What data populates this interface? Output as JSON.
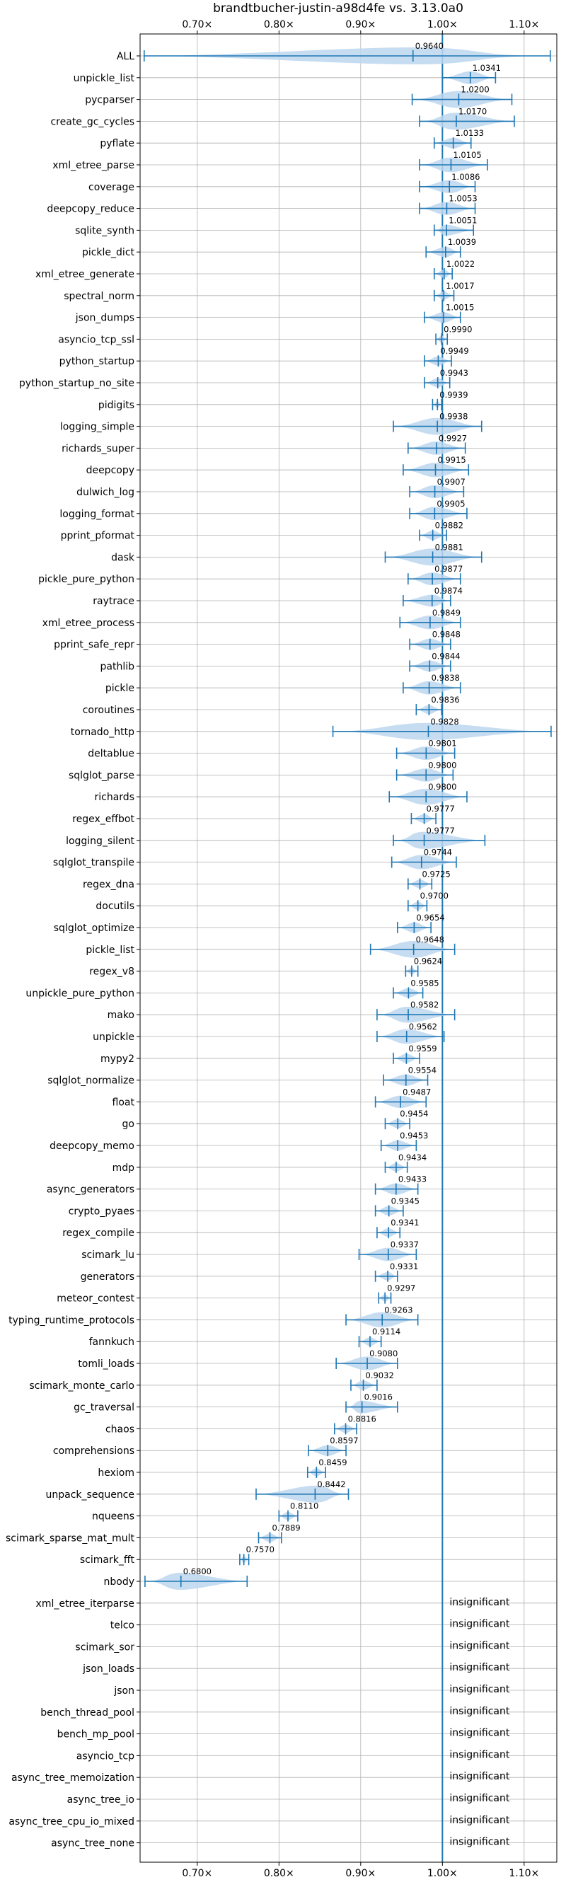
{
  "chart_data": {
    "type": "violin",
    "title": "brandtbucher-justin-a98d4fe vs. 3.13.0a0",
    "xlabel": "",
    "ylabel": "",
    "xlim": [
      0.63,
      1.14
    ],
    "x_ticks": [
      0.7,
      0.8,
      0.9,
      1.0,
      1.1
    ],
    "x_tick_labels": [
      "0.70×",
      "0.80×",
      "0.90×",
      "1.00×",
      "1.10×"
    ],
    "reference_line": 1.0,
    "grid": true,
    "color": "#1f77b4",
    "fill_color": "#bcd6ee",
    "insignificant_label": "insignificant",
    "benchmarks": [
      {
        "name": "ALL",
        "value": 0.964,
        "min": 0.635,
        "max": 1.132,
        "width": 0.045,
        "label": "0.9640"
      },
      {
        "name": "unpickle_list",
        "value": 1.0341,
        "min": 1.0,
        "max": 1.065,
        "width": 0.045,
        "label": "1.0341"
      },
      {
        "name": "pycparser",
        "value": 1.02,
        "min": 0.963,
        "max": 1.085,
        "width": 0.045,
        "label": "1.0200"
      },
      {
        "name": "create_gc_cycles",
        "value": 1.017,
        "min": 0.972,
        "max": 1.088,
        "width": 0.045,
        "label": "1.0170"
      },
      {
        "name": "pyflate",
        "value": 1.0133,
        "min": 0.99,
        "max": 1.035,
        "width": 0.045,
        "label": "1.0133"
      },
      {
        "name": "xml_etree_parse",
        "value": 1.0105,
        "min": 0.972,
        "max": 1.055,
        "width": 0.045,
        "label": "1.0105"
      },
      {
        "name": "coverage",
        "value": 1.0086,
        "min": 0.972,
        "max": 1.04,
        "width": 0.045,
        "label": "1.0086"
      },
      {
        "name": "deepcopy_reduce",
        "value": 1.0053,
        "min": 0.972,
        "max": 1.04,
        "width": 0.045,
        "label": "1.0053"
      },
      {
        "name": "sqlite_synth",
        "value": 1.0051,
        "min": 0.99,
        "max": 1.038,
        "width": 0.045,
        "label": "1.0051"
      },
      {
        "name": "pickle_dict",
        "value": 1.0039,
        "min": 0.98,
        "max": 1.022,
        "width": 0.045,
        "label": "1.0039"
      },
      {
        "name": "xml_etree_generate",
        "value": 1.0022,
        "min": 0.99,
        "max": 1.012,
        "width": 0.045,
        "label": "1.0022"
      },
      {
        "name": "spectral_norm",
        "value": 1.0017,
        "min": 0.99,
        "max": 1.014,
        "width": 0.045,
        "label": "1.0017"
      },
      {
        "name": "json_dumps",
        "value": 1.0015,
        "min": 0.978,
        "max": 1.022,
        "width": 0.045,
        "label": "1.0015"
      },
      {
        "name": "asyncio_tcp_ssl",
        "value": 0.999,
        "min": 0.992,
        "max": 1.006,
        "width": 0.045,
        "label": "0.9990"
      },
      {
        "name": "python_startup",
        "value": 0.9949,
        "min": 0.978,
        "max": 1.011,
        "width": 0.045,
        "label": "0.9949"
      },
      {
        "name": "python_startup_no_site",
        "value": 0.9943,
        "min": 0.978,
        "max": 1.009,
        "width": 0.045,
        "label": "0.9943"
      },
      {
        "name": "pidigits",
        "value": 0.9939,
        "min": 0.988,
        "max": 0.999,
        "width": 0.045,
        "label": "0.9939"
      },
      {
        "name": "logging_simple",
        "value": 0.9938,
        "min": 0.94,
        "max": 1.048,
        "width": 0.045,
        "label": "0.9938"
      },
      {
        "name": "richards_super",
        "value": 0.9927,
        "min": 0.958,
        "max": 1.028,
        "width": 0.045,
        "label": "0.9927"
      },
      {
        "name": "deepcopy",
        "value": 0.9915,
        "min": 0.952,
        "max": 1.032,
        "width": 0.045,
        "label": "0.9915"
      },
      {
        "name": "dulwich_log",
        "value": 0.9907,
        "min": 0.96,
        "max": 1.026,
        "width": 0.045,
        "label": "0.9907"
      },
      {
        "name": "logging_format",
        "value": 0.9905,
        "min": 0.96,
        "max": 1.03,
        "width": 0.045,
        "label": "0.9905"
      },
      {
        "name": "pprint_pformat",
        "value": 0.9882,
        "min": 0.972,
        "max": 1.005,
        "width": 0.045,
        "label": "0.9882"
      },
      {
        "name": "dask",
        "value": 0.9881,
        "min": 0.93,
        "max": 1.048,
        "width": 0.045,
        "label": "0.9881"
      },
      {
        "name": "pickle_pure_python",
        "value": 0.9877,
        "min": 0.958,
        "max": 1.022,
        "width": 0.045,
        "label": "0.9877"
      },
      {
        "name": "raytrace",
        "value": 0.9874,
        "min": 0.952,
        "max": 1.01,
        "width": 0.045,
        "label": "0.9874"
      },
      {
        "name": "xml_etree_process",
        "value": 0.9849,
        "min": 0.948,
        "max": 1.022,
        "width": 0.045,
        "label": "0.9849"
      },
      {
        "name": "pprint_safe_repr",
        "value": 0.9848,
        "min": 0.96,
        "max": 1.01,
        "width": 0.045,
        "label": "0.9848"
      },
      {
        "name": "pathlib",
        "value": 0.9844,
        "min": 0.96,
        "max": 1.01,
        "width": 0.045,
        "label": "0.9844"
      },
      {
        "name": "pickle",
        "value": 0.9838,
        "min": 0.952,
        "max": 1.022,
        "width": 0.045,
        "label": "0.9838"
      },
      {
        "name": "coroutines",
        "value": 0.9836,
        "min": 0.968,
        "max": 0.999,
        "width": 0.045,
        "label": "0.9836"
      },
      {
        "name": "tornado_http",
        "value": 0.9828,
        "min": 0.866,
        "max": 1.133,
        "width": 0.045,
        "label": "0.9828"
      },
      {
        "name": "deltablue",
        "value": 0.9801,
        "min": 0.944,
        "max": 1.015,
        "width": 0.045,
        "label": "0.9801"
      },
      {
        "name": "sqlglot_parse",
        "value": 0.98,
        "min": 0.944,
        "max": 1.013,
        "width": 0.045,
        "label": "0.9800"
      },
      {
        "name": "richards",
        "value": 0.98,
        "min": 0.935,
        "max": 1.03,
        "width": 0.045,
        "label": "0.9800"
      },
      {
        "name": "regex_effbot",
        "value": 0.9777,
        "min": 0.962,
        "max": 0.992,
        "width": 0.045,
        "label": "0.9777"
      },
      {
        "name": "logging_silent",
        "value": 0.9777,
        "min": 0.94,
        "max": 1.052,
        "width": 0.045,
        "label": "0.9777"
      },
      {
        "name": "sqlglot_transpile",
        "value": 0.9744,
        "min": 0.938,
        "max": 1.017,
        "width": 0.045,
        "label": "0.9744"
      },
      {
        "name": "regex_dna",
        "value": 0.9725,
        "min": 0.958,
        "max": 0.987,
        "width": 0.045,
        "label": "0.9725"
      },
      {
        "name": "docutils",
        "value": 0.97,
        "min": 0.958,
        "max": 0.981,
        "width": 0.045,
        "label": "0.9700"
      },
      {
        "name": "sqlglot_optimize",
        "value": 0.9654,
        "min": 0.945,
        "max": 0.986,
        "width": 0.045,
        "label": "0.9654"
      },
      {
        "name": "pickle_list",
        "value": 0.9648,
        "min": 0.912,
        "max": 1.015,
        "width": 0.045,
        "label": "0.9648"
      },
      {
        "name": "regex_v8",
        "value": 0.9624,
        "min": 0.955,
        "max": 0.97,
        "width": 0.045,
        "label": "0.9624"
      },
      {
        "name": "unpickle_pure_python",
        "value": 0.9585,
        "min": 0.94,
        "max": 0.976,
        "width": 0.045,
        "label": "0.9585"
      },
      {
        "name": "mako",
        "value": 0.9582,
        "min": 0.92,
        "max": 1.015,
        "width": 0.045,
        "label": "0.9582"
      },
      {
        "name": "unpickle",
        "value": 0.9562,
        "min": 0.92,
        "max": 1.002,
        "width": 0.045,
        "label": "0.9562"
      },
      {
        "name": "mypy2",
        "value": 0.9559,
        "min": 0.94,
        "max": 0.972,
        "width": 0.045,
        "label": "0.9559"
      },
      {
        "name": "sqlglot_normalize",
        "value": 0.9554,
        "min": 0.928,
        "max": 0.982,
        "width": 0.045,
        "label": "0.9554"
      },
      {
        "name": "float",
        "value": 0.9487,
        "min": 0.918,
        "max": 0.98,
        "width": 0.045,
        "label": "0.9487"
      },
      {
        "name": "go",
        "value": 0.9454,
        "min": 0.93,
        "max": 0.96,
        "width": 0.045,
        "label": "0.9454"
      },
      {
        "name": "deepcopy_memo",
        "value": 0.9453,
        "min": 0.925,
        "max": 0.968,
        "width": 0.045,
        "label": "0.9453"
      },
      {
        "name": "mdp",
        "value": 0.9434,
        "min": 0.93,
        "max": 0.957,
        "width": 0.045,
        "label": "0.9434"
      },
      {
        "name": "async_generators",
        "value": 0.9433,
        "min": 0.918,
        "max": 0.97,
        "width": 0.045,
        "label": "0.9433"
      },
      {
        "name": "crypto_pyaes",
        "value": 0.9345,
        "min": 0.918,
        "max": 0.952,
        "width": 0.045,
        "label": "0.9345"
      },
      {
        "name": "regex_compile",
        "value": 0.9341,
        "min": 0.92,
        "max": 0.948,
        "width": 0.045,
        "label": "0.9341"
      },
      {
        "name": "scimark_lu",
        "value": 0.9337,
        "min": 0.898,
        "max": 0.968,
        "width": 0.045,
        "label": "0.9337"
      },
      {
        "name": "generators",
        "value": 0.9331,
        "min": 0.918,
        "max": 0.945,
        "width": 0.045,
        "label": "0.9331"
      },
      {
        "name": "meteor_contest",
        "value": 0.9297,
        "min": 0.922,
        "max": 0.937,
        "width": 0.045,
        "label": "0.9297"
      },
      {
        "name": "typing_runtime_protocols",
        "value": 0.9263,
        "min": 0.882,
        "max": 0.97,
        "width": 0.045,
        "label": "0.9263"
      },
      {
        "name": "fannkuch",
        "value": 0.9114,
        "min": 0.898,
        "max": 0.925,
        "width": 0.045,
        "label": "0.9114"
      },
      {
        "name": "tomli_loads",
        "value": 0.908,
        "min": 0.87,
        "max": 0.945,
        "width": 0.045,
        "label": "0.9080"
      },
      {
        "name": "scimark_monte_carlo",
        "value": 0.9032,
        "min": 0.888,
        "max": 0.92,
        "width": 0.045,
        "label": "0.9032"
      },
      {
        "name": "gc_traversal",
        "value": 0.9016,
        "min": 0.882,
        "max": 0.945,
        "width": 0.045,
        "label": "0.9016"
      },
      {
        "name": "chaos",
        "value": 0.8816,
        "min": 0.868,
        "max": 0.895,
        "width": 0.045,
        "label": "0.8816"
      },
      {
        "name": "comprehensions",
        "value": 0.8597,
        "min": 0.836,
        "max": 0.882,
        "width": 0.045,
        "label": "0.8597"
      },
      {
        "name": "hexiom",
        "value": 0.8459,
        "min": 0.835,
        "max": 0.857,
        "width": 0.045,
        "label": "0.8459"
      },
      {
        "name": "unpack_sequence",
        "value": 0.8442,
        "min": 0.772,
        "max": 0.885,
        "width": 0.045,
        "label": "0.8442"
      },
      {
        "name": "nqueens",
        "value": 0.811,
        "min": 0.8,
        "max": 0.823,
        "width": 0.045,
        "label": "0.8110"
      },
      {
        "name": "scimark_sparse_mat_mult",
        "value": 0.7889,
        "min": 0.775,
        "max": 0.803,
        "width": 0.045,
        "label": "0.7889"
      },
      {
        "name": "scimark_fft",
        "value": 0.757,
        "min": 0.752,
        "max": 0.763,
        "width": 0.045,
        "label": "0.7570"
      },
      {
        "name": "nbody",
        "value": 0.68,
        "min": 0.636,
        "max": 0.761,
        "width": 0.045,
        "label": "0.6800"
      },
      {
        "name": "xml_etree_iterparse",
        "insignificant": true
      },
      {
        "name": "telco",
        "insignificant": true
      },
      {
        "name": "scimark_sor",
        "insignificant": true
      },
      {
        "name": "json_loads",
        "insignificant": true
      },
      {
        "name": "json",
        "insignificant": true
      },
      {
        "name": "bench_thread_pool",
        "insignificant": true
      },
      {
        "name": "bench_mp_pool",
        "insignificant": true
      },
      {
        "name": "asyncio_tcp",
        "insignificant": true
      },
      {
        "name": "async_tree_memoization",
        "insignificant": true
      },
      {
        "name": "async_tree_io",
        "insignificant": true
      },
      {
        "name": "async_tree_cpu_io_mixed",
        "insignificant": true
      },
      {
        "name": "async_tree_none",
        "insignificant": true
      }
    ]
  }
}
